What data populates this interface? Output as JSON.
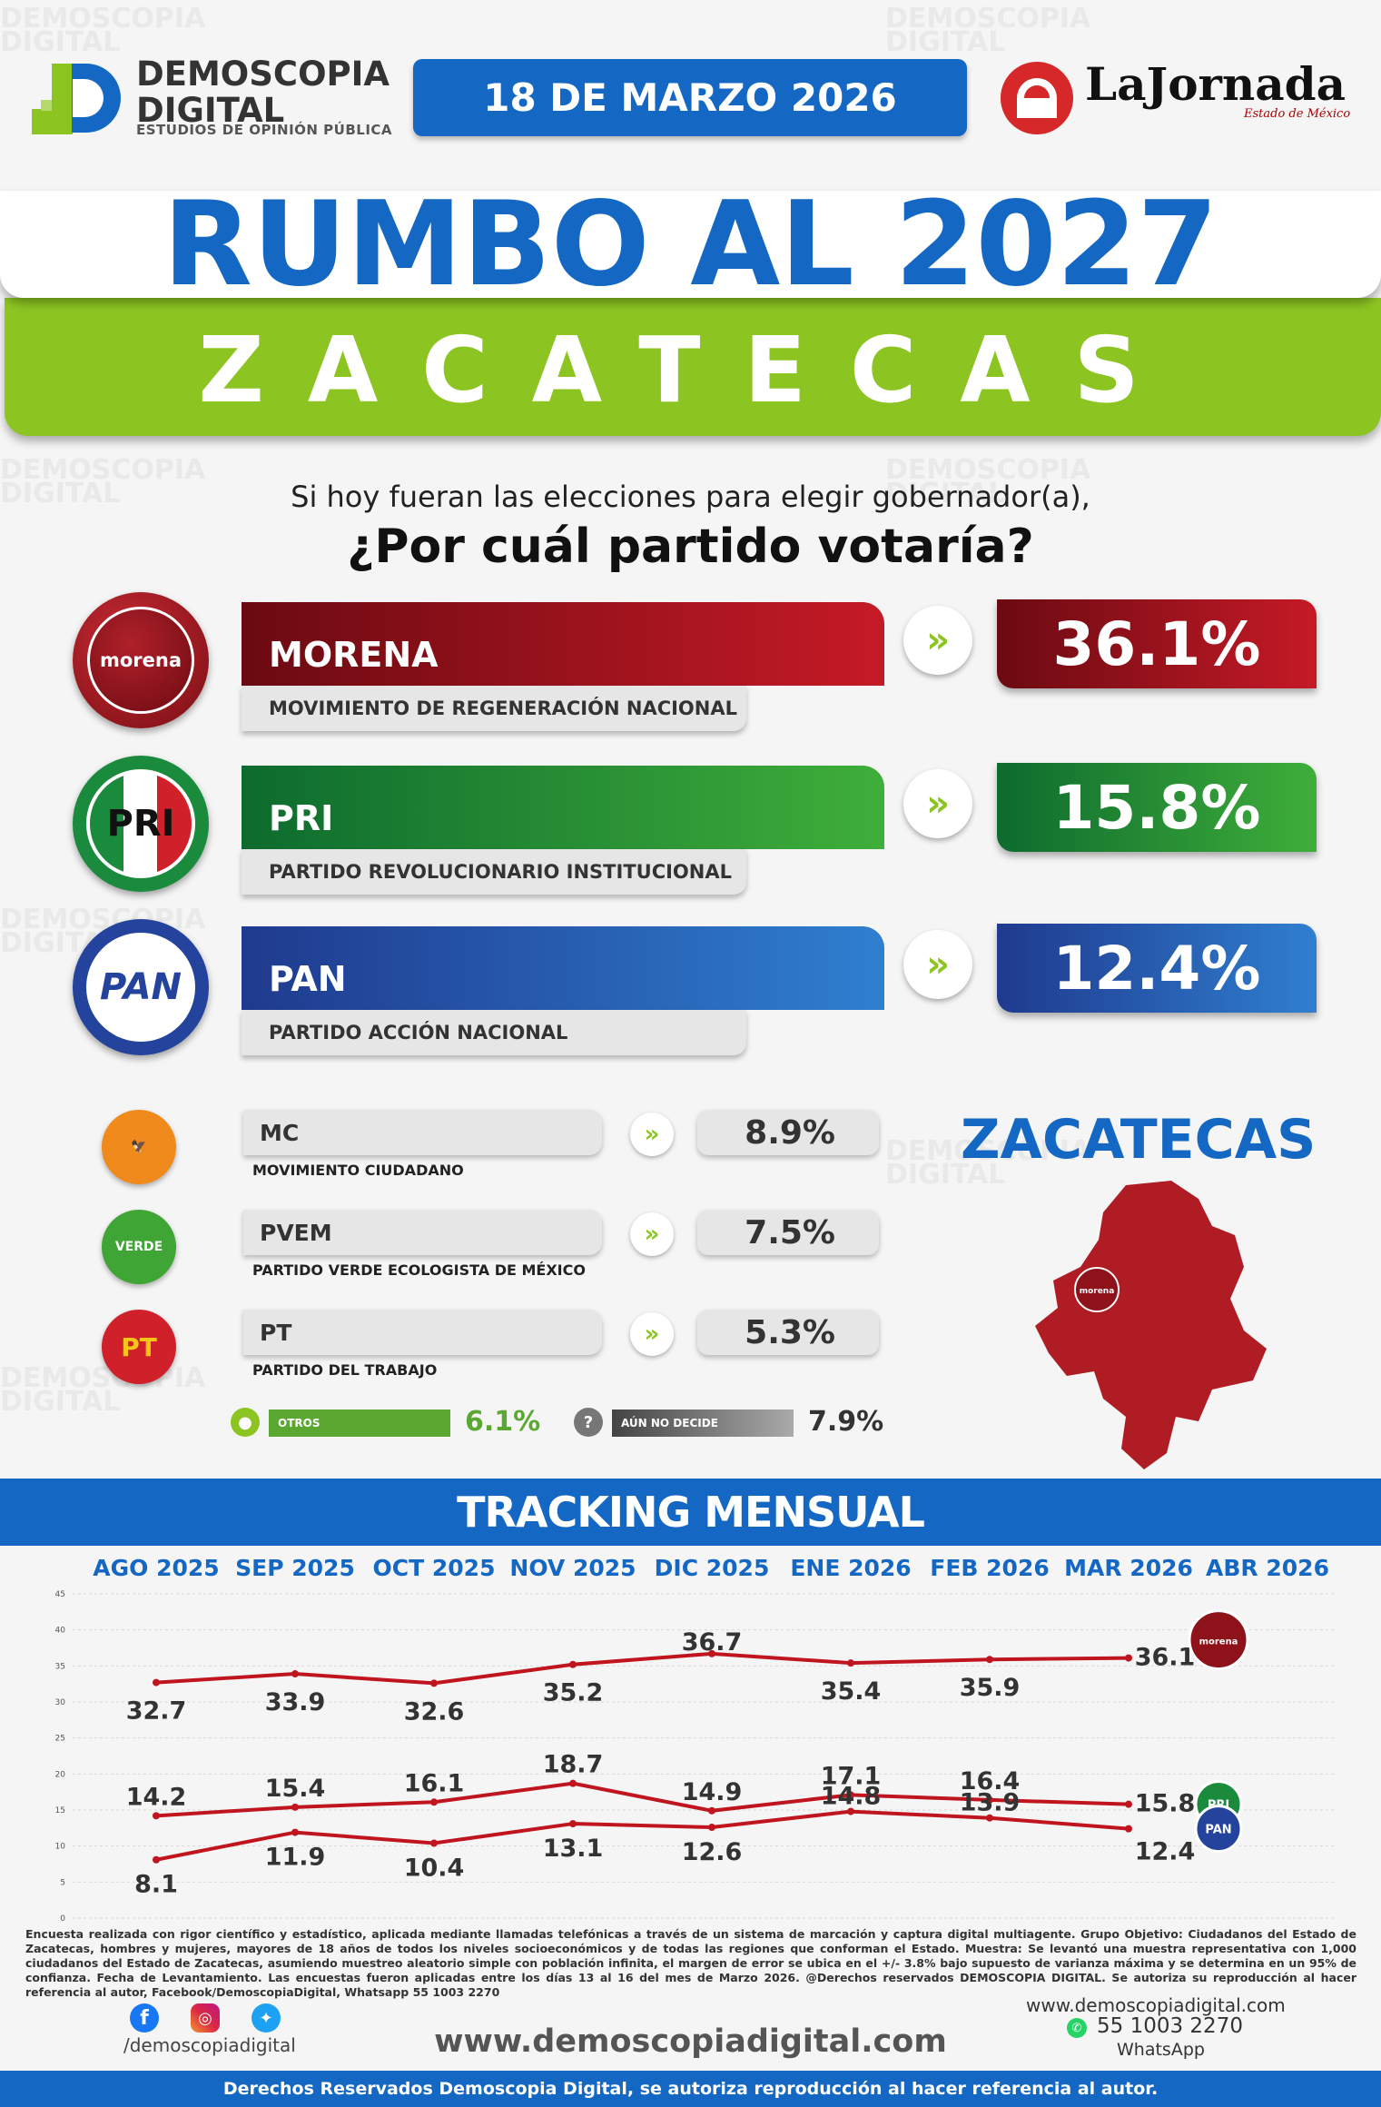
{
  "header": {
    "brand_line1": "DEMOSCOPIA",
    "brand_line2": "DIGITAL",
    "brand_tagline": "ESTUDIOS DE OPINIÓN PÚBLICA",
    "date": "18 DE MARZO 2026",
    "partner_name": "LaJornada",
    "partner_sub": "Estado de México"
  },
  "title": "RUMBO AL 2027",
  "subtitle": "ZACATECAS",
  "question_line1": "Si hoy fueran las elecciones para elegir gobernador(a),",
  "question_line2": "¿Por cuál partido votaría?",
  "colors": {
    "blue": "#1467c2",
    "green": "#8cc522",
    "morena": "#8e1219",
    "pri": "#1a8a3c",
    "pan": "#24439c"
  },
  "main_parties": [
    {
      "logo": "morena",
      "name": "MORENA",
      "full": "MOVIMIENTO DE REGENERACIÓN NACIONAL",
      "pct": "36.1%"
    },
    {
      "logo": "PRI",
      "name": "PRI",
      "full": "PARTIDO REVOLUCIONARIO INSTITUCIONAL",
      "pct": "15.8%"
    },
    {
      "logo": "PAN",
      "name": "PAN",
      "full": "PARTIDO ACCIÓN NACIONAL",
      "pct": "12.4%"
    }
  ],
  "minor_parties": [
    {
      "name": "MC",
      "full": "MOVIMIENTO CIUDADANO",
      "pct": "8.9%"
    },
    {
      "name": "PVEM",
      "full": "PARTIDO VERDE ECOLOGISTA DE MÉXICO",
      "pct": "7.5%"
    },
    {
      "name": "PT",
      "full": "PARTIDO DEL TRABAJO",
      "pct": "5.3%"
    }
  ],
  "others": {
    "label": "OTROS",
    "pct": "6.1%"
  },
  "undecided": {
    "label": "AÚN NO DECIDE",
    "pct": "7.9%"
  },
  "map": {
    "title": "ZACATECAS",
    "badge": "morena"
  },
  "tracking": {
    "title": "TRACKING MENSUAL",
    "months": [
      "AGO 2025",
      "SEP 2025",
      "OCT 2025",
      "NOV 2025",
      "DIC 2025",
      "ENE 2026",
      "FEB 2026",
      "MAR 2026",
      "ABR 2026"
    ]
  },
  "chart_data": {
    "type": "line",
    "categories": [
      "AGO 2025",
      "SEP 2025",
      "OCT 2025",
      "NOV 2025",
      "DIC 2025",
      "ENE 2026",
      "FEB 2026",
      "MAR 2026"
    ],
    "ylim": [
      0,
      45
    ],
    "yticks": [
      0,
      5,
      10,
      15,
      20,
      25,
      30,
      35,
      40,
      45
    ],
    "grid": true,
    "series": [
      {
        "name": "morena",
        "color": "#c0151f",
        "values": [
          32.7,
          33.9,
          32.6,
          35.2,
          36.7,
          35.4,
          35.9,
          36.1
        ]
      },
      {
        "name": "PRI",
        "color": "#c0151f",
        "values": [
          14.2,
          15.4,
          16.1,
          18.7,
          14.9,
          17.1,
          16.4,
          15.8
        ]
      },
      {
        "name": "PAN",
        "color": "#c0151f",
        "values": [
          8.1,
          11.9,
          10.4,
          13.1,
          12.6,
          14.8,
          13.9,
          12.4
        ]
      }
    ]
  },
  "footer": {
    "methodology": "Encuesta realizada con rigor científico y estadístico, aplicada mediante llamadas telefónicas a través de un sistema de marcación y captura digital multiagente. Grupo Objetivo: Ciudadanos del Estado de Zacatecas, hombres y mujeres, mayores de 18 años de todos los niveles socioeconómicos y de todas las regiones que conforman el Estado. Muestra: Se levantó una muestra representativa con 1,000 ciudadanos del Estado de Zacatecas, asumiendo muestreo aleatorio simple con población infinita, el margen de error se ubica en el +/- 3.8% bajo supuesto de varianza máxima y se determina en un 95% de confianza. Fecha de Levantamiento. Las encuestas fueron aplicadas entre los días 13 al 16 del mes de Marzo 2026. @Derechos reservados DEMOSCOPIA DIGITAL. Se autoriza su reproducción al hacer referencia al autor, Facebook/DemoscopiaDigital, Whatsapp 55 1003 2270",
    "social_handle": "/demoscopiadigital",
    "website": "www.demoscopiadigital.com",
    "website_small": "www.demoscopiadigital.com",
    "phone": "55 1003 2270",
    "phone_label": "WhatsApp",
    "rights": "Derechos Reservados Demoscopia Digital, se autoriza reproducción al hacer referencia al autor."
  }
}
